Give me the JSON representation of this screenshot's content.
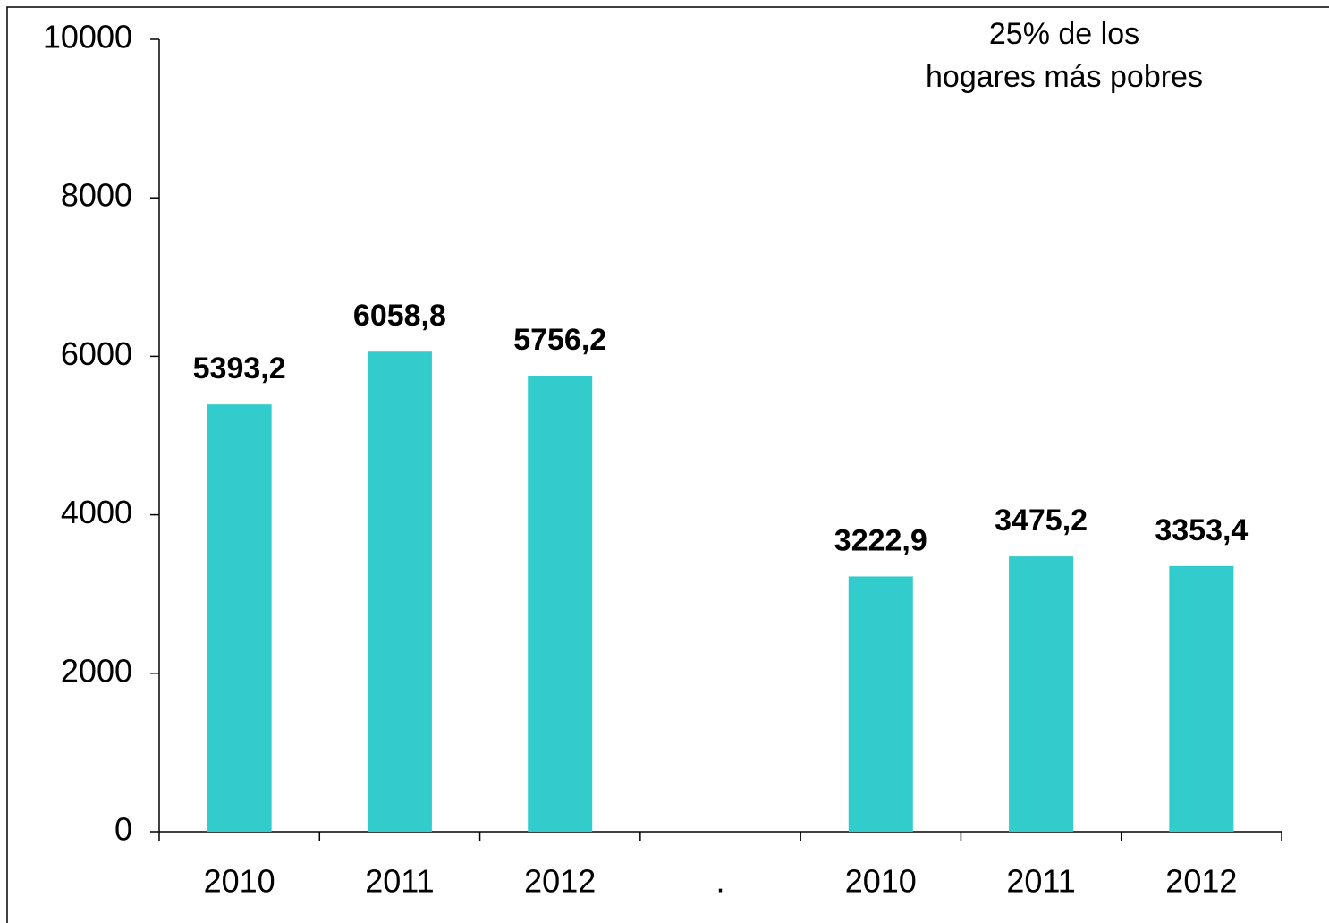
{
  "chart_data": {
    "type": "bar",
    "categories": [
      "2010",
      "2011",
      "2012",
      ".",
      "2010",
      "2011",
      "2012"
    ],
    "values": [
      5393.2,
      6058.8,
      5756.2,
      null,
      3222.9,
      3475.2,
      3353.4
    ],
    "value_labels": [
      "5393,2",
      "6058,8",
      "5756,2",
      null,
      "3222,9",
      "3475,2",
      "3353,4"
    ],
    "color": "#33cccc",
    "ylim": [
      0,
      10000
    ],
    "yticks": [
      0,
      2000,
      4000,
      6000,
      8000,
      10000
    ],
    "grid": false,
    "annotation": [
      "25% de los",
      "hogares más pobres"
    ]
  }
}
